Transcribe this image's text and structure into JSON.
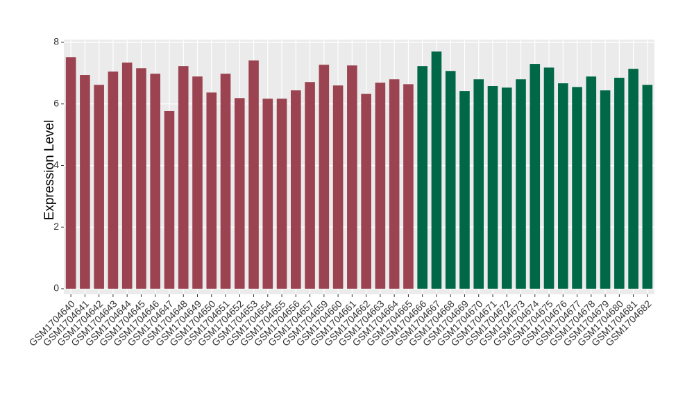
{
  "chart_data": {
    "type": "bar",
    "y_label": "Expression Level",
    "categories": [
      "GSM1704640",
      "GSM1704641",
      "GSM1704642",
      "GSM1704643",
      "GSM1704644",
      "GSM1704645",
      "GSM1704646",
      "GSM1704647",
      "GSM1704648",
      "GSM1704649",
      "GSM1704650",
      "GSM1704651",
      "GSM1704652",
      "GSM1704653",
      "GSM1704654",
      "GSM1704655",
      "GSM1704656",
      "GSM1704657",
      "GSM1704659",
      "GSM1704660",
      "GSM1704661",
      "GSM1704662",
      "GSM1704663",
      "GSM1704664",
      "GSM1704665",
      "GSM1704666",
      "GSM1704667",
      "GSM1704668",
      "GSM1704669",
      "GSM1704670",
      "GSM1704671",
      "GSM1704672",
      "GSM1704673",
      "GSM1704674",
      "GSM1704675",
      "GSM1704676",
      "GSM1704677",
      "GSM1704678",
      "GSM1704679",
      "GSM1704680",
      "GSM1704681",
      "GSM1704682"
    ],
    "values": [
      7.52,
      6.94,
      6.62,
      7.05,
      7.34,
      7.16,
      6.98,
      5.77,
      7.23,
      6.89,
      6.37,
      6.98,
      6.19,
      7.41,
      6.17,
      6.17,
      6.44,
      6.71,
      7.27,
      6.6,
      7.25,
      6.33,
      6.69,
      6.8,
      6.64,
      7.23,
      7.7,
      7.07,
      6.42,
      6.8,
      6.58,
      6.53,
      6.8,
      7.3,
      7.18,
      6.67,
      6.55,
      6.89,
      6.44,
      6.85,
      7.14,
      6.62
    ],
    "colors": [
      "#9b4350",
      "#9b4350",
      "#9b4350",
      "#9b4350",
      "#9b4350",
      "#9b4350",
      "#9b4350",
      "#9b4350",
      "#9b4350",
      "#9b4350",
      "#9b4350",
      "#9b4350",
      "#9b4350",
      "#9b4350",
      "#9b4350",
      "#9b4350",
      "#9b4350",
      "#9b4350",
      "#9b4350",
      "#9b4350",
      "#9b4350",
      "#9b4350",
      "#9b4350",
      "#9b4350",
      "#9b4350",
      "#006847",
      "#006847",
      "#006847",
      "#006847",
      "#006847",
      "#006847",
      "#006847",
      "#006847",
      "#006847",
      "#006847",
      "#006847",
      "#006847",
      "#006847",
      "#006847",
      "#006847",
      "#006847",
      "#006847"
    ],
    "ylim": [
      -0.18,
      8.09
    ],
    "yticks": [
      0,
      2,
      4,
      6,
      8
    ],
    "grid": true
  }
}
